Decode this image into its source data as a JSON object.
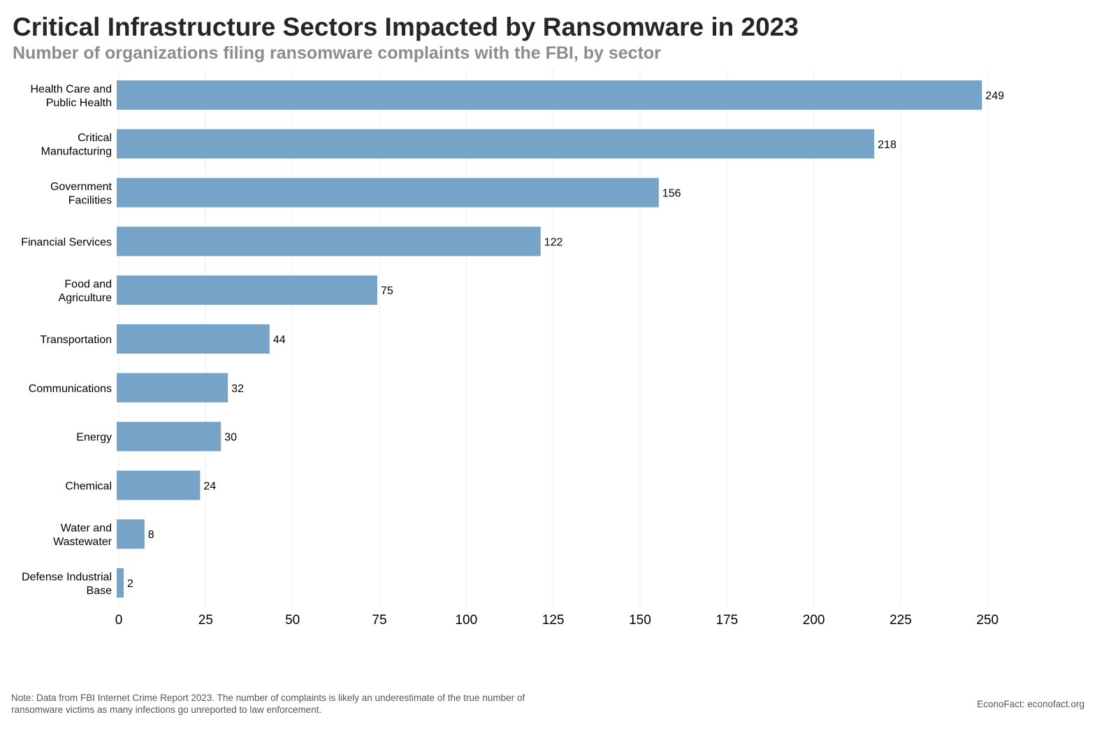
{
  "chart_data": {
    "type": "bar",
    "orientation": "horizontal",
    "title": "Critical Infrastructure Sectors Impacted by Ransomware in 2023",
    "subtitle": "Number of organizations filing ransomware complaints with the FBI, by sector",
    "categories": [
      [
        "Health Care and",
        "Public Health"
      ],
      [
        "Critical",
        "Manufacturing"
      ],
      [
        "Government",
        "Facilities"
      ],
      [
        "Financial Services"
      ],
      [
        "Food and",
        "Agriculture"
      ],
      [
        "Transportation"
      ],
      [
        "Communications"
      ],
      [
        "Energy"
      ],
      [
        "Chemical"
      ],
      [
        "Water and",
        "Wastewater"
      ],
      [
        "Defense Industrial",
        "Base"
      ]
    ],
    "values": [
      249,
      218,
      156,
      122,
      75,
      44,
      32,
      30,
      24,
      8,
      2
    ],
    "data_labels": [
      "249",
      "218",
      "156",
      "122",
      "75",
      "44",
      "32",
      "30",
      "24",
      "8",
      "2"
    ],
    "x_ticks": [
      0,
      25,
      50,
      75,
      100,
      125,
      150,
      175,
      200,
      225,
      250
    ],
    "xlim": [
      0,
      268
    ],
    "grid": "vertical",
    "bar_color": "#76a3c8",
    "xlabel": "",
    "ylabel": ""
  },
  "note": "Note: Data from FBI Internet Crime Report 2023. The number of complaints is likely an underestimate of the true number of ransomware victims as many infections go unreported to law enforcement.",
  "credit": "EconoFact: econofact.org"
}
